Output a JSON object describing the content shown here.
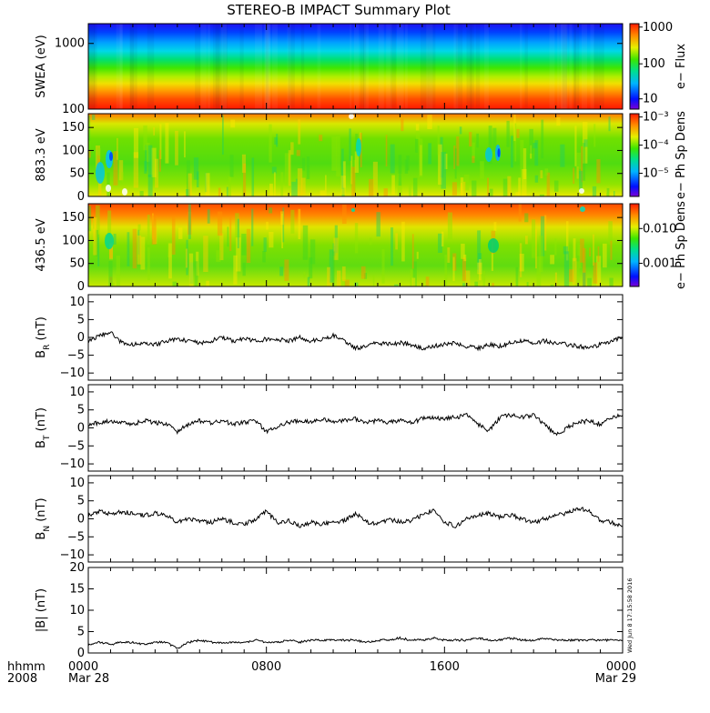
{
  "title": "STEREO-B IMPACT Summary Plot",
  "footer": {
    "row1_label": "hhmm",
    "row2_label": "2008",
    "ticks": [
      {
        "top": "0000",
        "bottom": "Mar 28"
      },
      {
        "top": "0800",
        "bottom": ""
      },
      {
        "top": "1600",
        "bottom": ""
      },
      {
        "top": "0000",
        "bottom": "Mar 29"
      }
    ]
  },
  "timestamp": "Wed Jun 8 17:15:58 2016",
  "chart_data": [
    {
      "type": "heatmap",
      "ylabel": "SWEA (eV)",
      "yscale": "log",
      "ylim": [
        100,
        2000
      ],
      "yticks": [
        "1000",
        "100"
      ],
      "colorbar": {
        "label": "e− Flux",
        "scale": "log",
        "ticks": [
          "1000",
          "100",
          "10"
        ]
      }
    },
    {
      "type": "heatmap",
      "ylabel": "883.3 eV",
      "ylim": [
        0,
        180
      ],
      "yticks": [
        "150",
        "100",
        "50",
        "0"
      ],
      "colorbar": {
        "label": "e− Ph Sp Dens",
        "scale": "log",
        "ticks": [
          "10⁻³",
          "10⁻⁴",
          "10⁻⁵"
        ]
      }
    },
    {
      "type": "heatmap",
      "ylabel": "436.5 eV",
      "ylim": [
        0,
        180
      ],
      "yticks": [
        "150",
        "100",
        "50",
        "0"
      ],
      "colorbar": {
        "label": "e− Ph Sp Dens",
        "scale": "log",
        "ticks": [
          "0.010",
          "0.001"
        ]
      }
    },
    {
      "type": "line",
      "ylabel": "B",
      "ylabel_sub": "R",
      "ylabel_unit": "(nT)",
      "ylim": [
        -12,
        12
      ],
      "yticks": [
        "10",
        "5",
        "0",
        "−5",
        "−10"
      ],
      "x_hours": [
        0,
        0.5,
        1,
        1.5,
        2,
        2.5,
        3,
        3.5,
        4,
        4.5,
        5,
        5.5,
        6,
        6.5,
        7,
        7.5,
        8,
        8.5,
        9,
        9.5,
        10,
        10.5,
        11,
        11.5,
        12,
        12.5,
        13,
        13.5,
        14,
        14.5,
        15,
        15.5,
        16,
        16.5,
        17,
        17.5,
        18,
        18.5,
        19,
        19.5,
        20,
        20.5,
        21,
        21.5,
        22,
        22.5,
        23,
        23.5,
        24
      ],
      "values": [
        -1,
        0.5,
        1.5,
        -1.5,
        -2,
        -1.5,
        -2,
        -1,
        -0.5,
        -1,
        -1.5,
        -1,
        0,
        -1,
        -0.5,
        -1,
        -0.5,
        -0.5,
        -1,
        0,
        -1,
        -0.5,
        0.5,
        -1,
        -3,
        -2.5,
        -1.5,
        -2,
        -1.5,
        -2,
        -3,
        -2.5,
        -2,
        -1.5,
        -2.5,
        -3,
        -2,
        -2.5,
        -1.5,
        -1,
        -1.5,
        -1,
        -1.5,
        -2,
        -2.5,
        -3,
        -2,
        -1,
        0
      ]
    },
    {
      "type": "line",
      "ylabel": "B",
      "ylabel_sub": "T",
      "ylabel_unit": "(nT)",
      "ylim": [
        -12,
        12
      ],
      "yticks": [
        "10",
        "5",
        "0",
        "−5",
        "−10"
      ],
      "x_hours": [
        0,
        0.5,
        1,
        1.5,
        2,
        2.5,
        3,
        3.5,
        4,
        4.5,
        5,
        5.5,
        6,
        6.5,
        7,
        7.5,
        8,
        8.5,
        9,
        9.5,
        10,
        10.5,
        11,
        11.5,
        12,
        12.5,
        13,
        13.5,
        14,
        14.5,
        15,
        15.5,
        16,
        16.5,
        17,
        17.5,
        18,
        18.5,
        19,
        19.5,
        20,
        20.5,
        21,
        21.5,
        22,
        22.5,
        23,
        23.5,
        24
      ],
      "values": [
        1,
        1.5,
        2,
        1.5,
        1,
        2,
        1.5,
        1,
        -1,
        1,
        2,
        1.5,
        2,
        1,
        1.5,
        2,
        -1,
        0.5,
        1.5,
        2,
        1.5,
        2.5,
        1.5,
        2,
        2.5,
        1.5,
        2,
        1.5,
        2,
        1.5,
        2.5,
        3,
        2.5,
        3,
        3.5,
        1,
        -1,
        3,
        3.5,
        3,
        3.5,
        1,
        -2,
        0,
        1.5,
        2,
        1,
        3,
        3.5
      ]
    },
    {
      "type": "line",
      "ylabel": "B",
      "ylabel_sub": "N",
      "ylabel_unit": "(nT)",
      "ylim": [
        -12,
        12
      ],
      "yticks": [
        "10",
        "5",
        "0",
        "−5",
        "−10"
      ],
      "x_hours": [
        0,
        0.5,
        1,
        1.5,
        2,
        2.5,
        3,
        3.5,
        4,
        4.5,
        5,
        5.5,
        6,
        6.5,
        7,
        7.5,
        8,
        8.5,
        9,
        9.5,
        10,
        10.5,
        11,
        11.5,
        12,
        12.5,
        13,
        13.5,
        14,
        14.5,
        15,
        15.5,
        16,
        16.5,
        17,
        17.5,
        18,
        18.5,
        19,
        19.5,
        20,
        20.5,
        21,
        21.5,
        22,
        22.5,
        23,
        23.5,
        24
      ],
      "values": [
        1,
        2,
        1.5,
        2,
        1.5,
        1,
        1.5,
        1,
        -1,
        0,
        -0.5,
        -1,
        0,
        -1,
        -1.5,
        0,
        2,
        -1,
        -0.5,
        -2,
        -1,
        -1.5,
        -1,
        -0.5,
        1.5,
        -1,
        -1.5,
        0,
        -1,
        -0.5,
        1,
        2.5,
        -1,
        -2,
        0,
        1,
        1.5,
        0.5,
        1,
        0,
        -1,
        0,
        1,
        1.5,
        3,
        2,
        -0.5,
        -1,
        -2
      ]
    },
    {
      "type": "line",
      "ylabel": "|B|",
      "ylabel_unit": "(nT)",
      "ylim": [
        0,
        20
      ],
      "yticks": [
        "20",
        "15",
        "10",
        "5",
        "0"
      ],
      "x_hours": [
        0,
        0.5,
        1,
        1.5,
        2,
        2.5,
        3,
        3.5,
        4,
        4.5,
        5,
        5.5,
        6,
        6.5,
        7,
        7.5,
        8,
        8.5,
        9,
        9.5,
        10,
        10.5,
        11,
        11.5,
        12,
        12.5,
        13,
        13.5,
        14,
        14.5,
        15,
        15.5,
        16,
        16.5,
        17,
        17.5,
        18,
        18.5,
        19,
        19.5,
        20,
        20.5,
        21,
        21.5,
        22,
        22.5,
        23,
        23.5,
        24
      ],
      "values": [
        2,
        2.5,
        2,
        2.5,
        2.5,
        2,
        2.5,
        2.5,
        1,
        2.5,
        3,
        2.5,
        2.5,
        2.5,
        2.5,
        3,
        2.5,
        2.5,
        3,
        2.5,
        3,
        3,
        3,
        3,
        3,
        2.5,
        3,
        3,
        3.5,
        3,
        3,
        3.5,
        3,
        3,
        3,
        3.5,
        3,
        3,
        3.5,
        3,
        3,
        3.5,
        3,
        3,
        3,
        3,
        3,
        3,
        3
      ]
    }
  ]
}
